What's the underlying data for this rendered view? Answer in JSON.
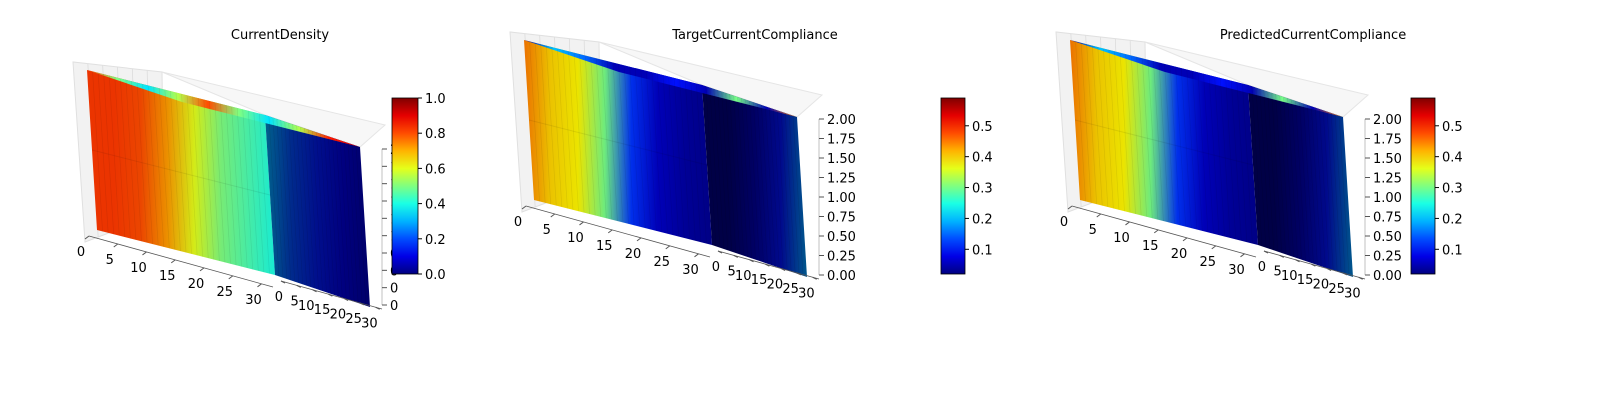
{
  "chart_data": [
    {
      "type": "3d-voxel",
      "title": "CurrentDensity",
      "colormap": "jet",
      "grid": true,
      "x_ticks": [
        "0",
        "5",
        "10",
        "15",
        "20",
        "25",
        "30"
      ],
      "y_ticks": [
        "0",
        "5",
        "10",
        "15",
        "20",
        "25",
        "30"
      ],
      "z_ticks": [
        "0",
        "0",
        "0",
        "0",
        "1",
        "1",
        "1",
        "1",
        "1",
        "2"
      ],
      "xlim": [
        0,
        32
      ],
      "ylim": [
        0,
        32
      ],
      "zlim": [
        0,
        2
      ],
      "colorbar": {
        "vmin": 0.0,
        "vmax": 1.0,
        "ticks": [
          "0.0",
          "0.2",
          "0.4",
          "0.6",
          "0.8",
          "1.0"
        ]
      },
      "top_face_values": [
        0.8,
        0.5,
        0.35,
        0.55,
        0.8,
        0.5,
        0.35,
        0.55,
        0.85,
        0.9
      ],
      "front_face_values": [
        0.82,
        0.82,
        0.8,
        0.72,
        0.6,
        0.5,
        0.45,
        0.4
      ],
      "side_face_values": [
        0.3,
        0.2,
        0.15,
        0.1,
        0.06
      ]
    },
    {
      "type": "3d-voxel",
      "title": "TargetCurrentCompliance",
      "colormap": "jet",
      "grid": true,
      "x_ticks": [
        "0",
        "5",
        "10",
        "15",
        "20",
        "25",
        "30"
      ],
      "y_ticks": [
        "0",
        "5",
        "10",
        "15",
        "20",
        "25",
        "30"
      ],
      "z_ticks": [
        "0.00",
        "0.25",
        "0.50",
        "0.75",
        "1.00",
        "1.25",
        "1.50",
        "1.75",
        "2.00"
      ],
      "xlim": [
        0,
        32
      ],
      "ylim": [
        0,
        32
      ],
      "zlim": [
        0,
        2
      ],
      "colorbar": {
        "vmin": 0.02,
        "vmax": 0.59,
        "ticks": [
          "0.1",
          "0.2",
          "0.3",
          "0.4",
          "0.5"
        ]
      },
      "top_face_values": [
        0.05,
        0.2,
        0.15,
        0.05,
        0.05,
        0.1,
        0.05,
        0.3,
        0.05,
        0.45
      ],
      "front_face_values": [
        0.45,
        0.4,
        0.38,
        0.3,
        0.12,
        0.06,
        0.04,
        0.03
      ],
      "side_face_values": [
        0.02,
        0.02,
        0.05,
        0.1,
        0.18
      ]
    },
    {
      "type": "3d-voxel",
      "title": "PredictedCurrentCompliance",
      "colormap": "jet",
      "grid": true,
      "x_ticks": [
        "0",
        "5",
        "10",
        "15",
        "20",
        "25",
        "30"
      ],
      "y_ticks": [
        "0",
        "5",
        "10",
        "15",
        "20",
        "25",
        "30"
      ],
      "z_ticks": [
        "0.00",
        "0.25",
        "0.50",
        "0.75",
        "1.00",
        "1.25",
        "1.50",
        "1.75",
        "2.00"
      ],
      "xlim": [
        0,
        32
      ],
      "ylim": [
        0,
        32
      ],
      "zlim": [
        0,
        2
      ],
      "colorbar": {
        "vmin": 0.02,
        "vmax": 0.59,
        "ticks": [
          "0.1",
          "0.2",
          "0.3",
          "0.4",
          "0.5"
        ]
      },
      "top_face_values": [
        0.05,
        0.2,
        0.15,
        0.05,
        0.05,
        0.1,
        0.05,
        0.3,
        0.05,
        0.45
      ],
      "front_face_values": [
        0.45,
        0.4,
        0.38,
        0.3,
        0.12,
        0.06,
        0.04,
        0.03
      ],
      "side_face_values": [
        0.02,
        0.02,
        0.05,
        0.1,
        0.18
      ]
    }
  ]
}
